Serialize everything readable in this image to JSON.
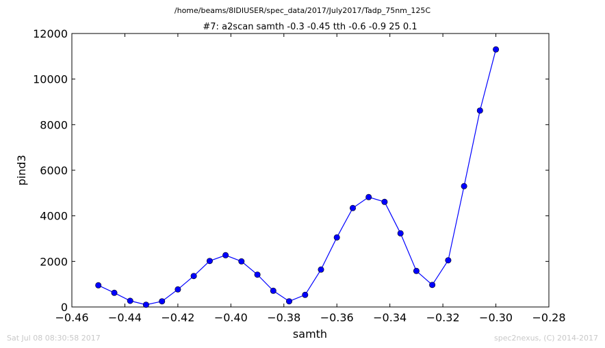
{
  "chart_data": {
    "type": "line",
    "suptitle": "/home/beams/8IDIUSER/spec_data/2017/July2017/Tadp_75nm_125C",
    "title": "#7: a2scan  samth -0.3 -0.45  tth -0.6 -0.9  25 0.1",
    "xlabel": "samth",
    "ylabel": "pind3",
    "xlim": [
      -0.46,
      -0.28
    ],
    "ylim": [
      0,
      12000
    ],
    "xticks": [
      "−0.46",
      "−0.44",
      "−0.42",
      "−0.40",
      "−0.38",
      "−0.36",
      "−0.34",
      "−0.32",
      "−0.30",
      "−0.28"
    ],
    "yticks": [
      "0",
      "2000",
      "4000",
      "6000",
      "8000",
      "10000",
      "12000"
    ],
    "grid": false,
    "series": [
      {
        "color": "#0000ff",
        "marker": "circle",
        "x": [
          -0.45,
          -0.444,
          -0.438,
          -0.432,
          -0.426,
          -0.42,
          -0.414,
          -0.408,
          -0.402,
          -0.396,
          -0.39,
          -0.384,
          -0.378,
          -0.372,
          -0.366,
          -0.36,
          -0.354,
          -0.348,
          -0.342,
          -0.336,
          -0.33,
          -0.324,
          -0.318,
          -0.312,
          -0.306,
          -0.3
        ],
        "y": [
          950,
          620,
          270,
          100,
          250,
          770,
          1360,
          2020,
          2270,
          2000,
          1420,
          710,
          250,
          530,
          1640,
          3050,
          4340,
          4820,
          4610,
          3230,
          1580,
          970,
          2050,
          5300,
          8620,
          11300
        ]
      }
    ]
  },
  "footer": {
    "timestamp": "Sat Jul 08 08:30:58 2017",
    "credit": "spec2nexus, (C) 2014-2017"
  }
}
